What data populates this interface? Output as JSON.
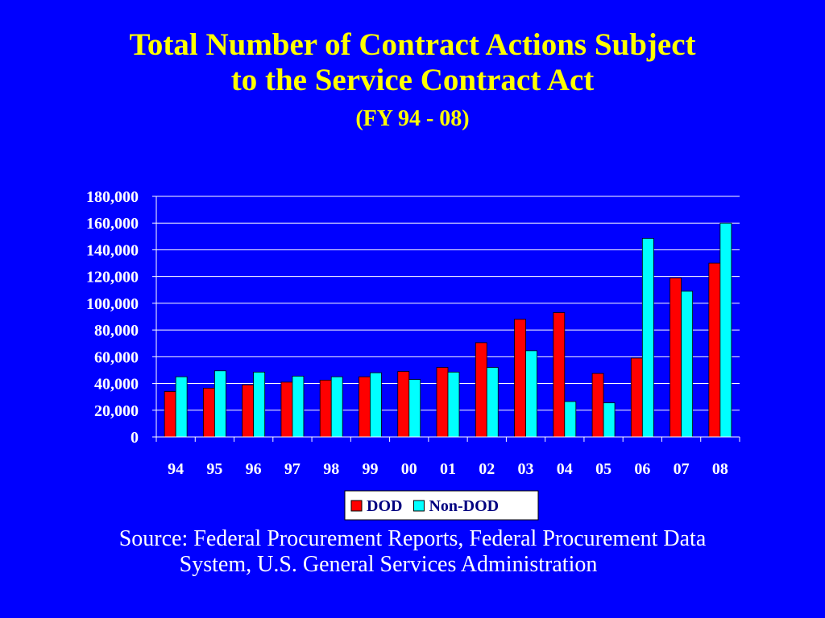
{
  "colors": {
    "background": "#0000ff",
    "title": "#ffff00",
    "text": "#ffffff",
    "dod": "#ff0000",
    "non_dod": "#00ffff",
    "legend_bg": "#ffffff",
    "legend_text": "#000080"
  },
  "title": {
    "line1": "Total Number of Contract Actions Subject",
    "line2": "to the Service Contract Act",
    "line3": "(FY 94 - 08)"
  },
  "source": {
    "line1": "Source: Federal Procurement Reports, Federal Procurement Data",
    "line2": "System, U.S. General Services Administration"
  },
  "chart_data": {
    "type": "bar",
    "categories": [
      "94",
      "95",
      "96",
      "97",
      "98",
      "99",
      "00",
      "01",
      "02",
      "03",
      "04",
      "05",
      "06",
      "07",
      "08"
    ],
    "series": [
      {
        "name": "DOD",
        "color": "#ff0000",
        "values": [
          34000,
          36500,
          39000,
          41000,
          42500,
          45000,
          49000,
          52000,
          70500,
          88000,
          93000,
          47500,
          59000,
          119000,
          130000
        ]
      },
      {
        "name": "Non-DOD",
        "color": "#00ffff",
        "values": [
          45000,
          49500,
          48500,
          45500,
          45000,
          48000,
          43000,
          48500,
          52000,
          64500,
          26500,
          25500,
          148500,
          109000,
          160000
        ]
      }
    ],
    "yticks": [
      "0",
      "20,000",
      "40,000",
      "60,000",
      "80,000",
      "100,000",
      "120,000",
      "140,000",
      "160,000",
      "180,000"
    ],
    "ylim": [
      0,
      180000
    ],
    "grid": true,
    "legend_position": "bottom-center",
    "title": "",
    "xlabel": "",
    "ylabel": ""
  }
}
